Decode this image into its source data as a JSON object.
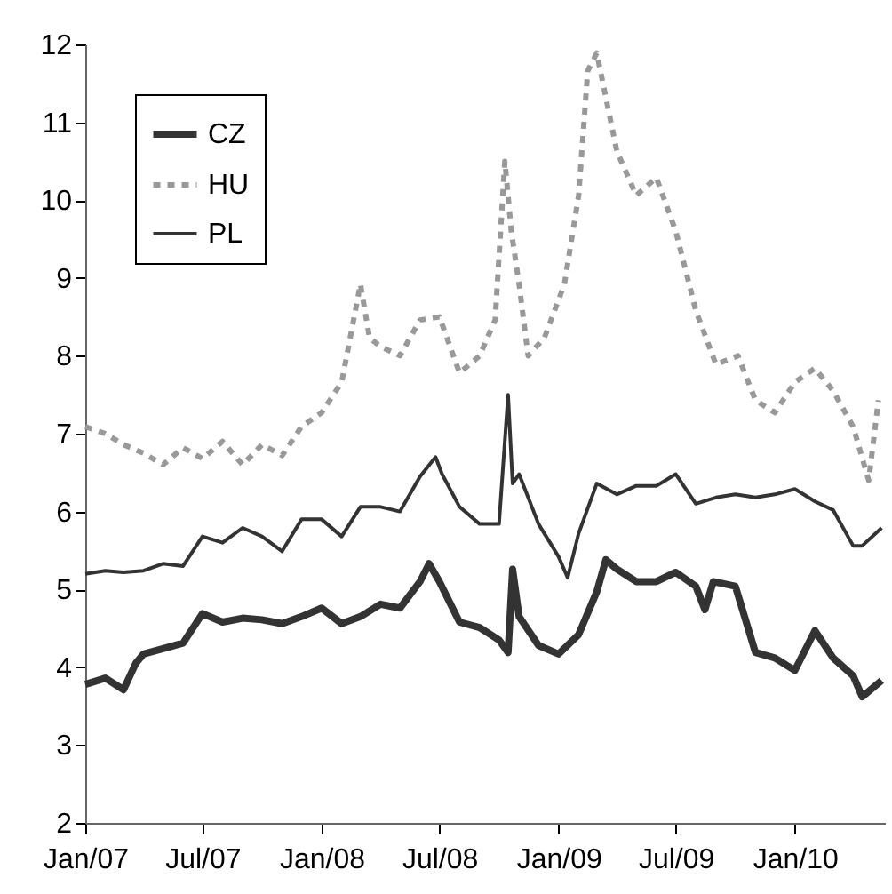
{
  "chart_data": {
    "type": "line",
    "legend": "top left",
    "grid": false,
    "ylim": [
      2,
      12
    ],
    "yticks": [
      2,
      3,
      4,
      5,
      6,
      7,
      8,
      9,
      10,
      11,
      12
    ],
    "xlim": [
      "2007-01-01",
      "2010-05-20"
    ],
    "xticks": [
      {
        "value": "2007-01-01",
        "label": "Jan/07"
      },
      {
        "value": "2007-07-01",
        "label": "Jul/07"
      },
      {
        "value": "2008-01-01",
        "label": "Jan/08"
      },
      {
        "value": "2008-07-01",
        "label": "Jul/08"
      },
      {
        "value": "2009-01-01",
        "label": "Jan/09"
      },
      {
        "value": "2009-07-01",
        "label": "Jul/09"
      },
      {
        "value": "2010-01-01",
        "label": "Jan/10"
      }
    ],
    "series": [
      {
        "name": "CZ",
        "color": "#333333",
        "line_style": "solid",
        "x": [
          "2007-01-01",
          "2007-02-01",
          "2007-03-01",
          "2007-03-20",
          "2007-04-01",
          "2007-05-01",
          "2007-06-01",
          "2007-07-01",
          "2007-08-01",
          "2007-09-01",
          "2007-10-01",
          "2007-11-01",
          "2007-12-01",
          "2008-01-01",
          "2008-02-01",
          "2008-03-01",
          "2008-04-01",
          "2008-05-01",
          "2008-06-01",
          "2008-06-15",
          "2008-07-01",
          "2008-08-01",
          "2008-09-01",
          "2008-10-01",
          "2008-10-15",
          "2008-10-22",
          "2008-11-01",
          "2008-12-01",
          "2009-01-01",
          "2009-02-01",
          "2009-03-01",
          "2009-03-15",
          "2009-04-01",
          "2009-05-01",
          "2009-06-01",
          "2009-07-01",
          "2009-08-01",
          "2009-08-15",
          "2009-08-28",
          "2009-10-01",
          "2009-11-01",
          "2009-12-01",
          "2010-01-01",
          "2010-02-01",
          "2010-03-01",
          "2010-04-01",
          "2010-04-15",
          "2010-05-15"
        ],
        "values": [
          3.78,
          3.86,
          3.71,
          4.05,
          4.17,
          4.24,
          4.31,
          4.69,
          4.58,
          4.63,
          4.61,
          4.56,
          4.65,
          4.76,
          4.56,
          4.65,
          4.81,
          4.76,
          5.1,
          5.33,
          5.1,
          4.58,
          4.51,
          4.35,
          4.19,
          5.26,
          4.65,
          4.28,
          4.17,
          4.42,
          4.97,
          5.38,
          5.26,
          5.1,
          5.1,
          5.22,
          5.04,
          4.74,
          5.1,
          5.04,
          4.19,
          4.12,
          3.96,
          4.47,
          4.12,
          3.89,
          3.62,
          3.83
        ]
      },
      {
        "name": "HU",
        "color": "#999999",
        "line_style": "dashed",
        "x": [
          "2007-01-01",
          "2007-02-01",
          "2007-03-01",
          "2007-04-01",
          "2007-05-01",
          "2007-06-01",
          "2007-07-01",
          "2007-08-01",
          "2007-09-01",
          "2007-10-01",
          "2007-11-01",
          "2007-12-01",
          "2008-01-01",
          "2008-02-01",
          "2008-03-01",
          "2008-03-15",
          "2008-04-01",
          "2008-05-01",
          "2008-06-01",
          "2008-07-01",
          "2008-08-01",
          "2008-09-01",
          "2008-09-25",
          "2008-10-10",
          "2008-10-20",
          "2008-11-01",
          "2008-11-15",
          "2008-12-10",
          "2009-01-10",
          "2009-02-01",
          "2009-02-15",
          "2009-03-01",
          "2009-03-15",
          "2009-04-01",
          "2009-05-01",
          "2009-06-01",
          "2009-07-01",
          "2009-08-01",
          "2009-09-01",
          "2009-10-05",
          "2009-11-01",
          "2009-12-01",
          "2010-01-01",
          "2010-02-01",
          "2010-03-01",
          "2010-04-01",
          "2010-04-25",
          "2010-05-10"
        ],
        "values": [
          7.09,
          7.0,
          6.86,
          6.75,
          6.6,
          6.82,
          6.68,
          6.9,
          6.6,
          6.86,
          6.72,
          7.09,
          7.27,
          7.66,
          8.92,
          8.23,
          8.12,
          8.0,
          8.46,
          8.5,
          7.78,
          8.0,
          8.46,
          10.5,
          9.6,
          8.92,
          8.0,
          8.23,
          8.92,
          10.06,
          11.66,
          11.89,
          11.32,
          10.63,
          10.06,
          10.29,
          9.6,
          8.58,
          7.89,
          8.0,
          7.43,
          7.27,
          7.66,
          7.84,
          7.55,
          7.09,
          6.4,
          7.43
        ]
      },
      {
        "name": "PL",
        "color": "#333333",
        "line_style": "solid",
        "x": [
          "2007-01-01",
          "2007-02-01",
          "2007-03-01",
          "2007-04-01",
          "2007-05-01",
          "2007-06-01",
          "2007-07-01",
          "2007-08-01",
          "2007-09-01",
          "2007-10-01",
          "2007-11-01",
          "2007-12-01",
          "2008-01-01",
          "2008-02-01",
          "2008-03-01",
          "2008-04-01",
          "2008-05-01",
          "2008-06-01",
          "2008-06-25",
          "2008-07-05",
          "2008-08-01",
          "2008-09-01",
          "2008-10-01",
          "2008-10-15",
          "2008-10-22",
          "2008-11-01",
          "2008-12-01",
          "2009-01-01",
          "2009-01-15",
          "2009-02-01",
          "2009-03-01",
          "2009-04-01",
          "2009-05-01",
          "2009-06-01",
          "2009-07-01",
          "2009-08-01",
          "2009-09-01",
          "2009-10-01",
          "2009-11-01",
          "2009-12-01",
          "2010-01-01",
          "2010-02-01",
          "2010-03-01",
          "2010-04-01",
          "2010-04-15",
          "2010-05-15"
        ],
        "values": [
          5.2,
          5.24,
          5.22,
          5.24,
          5.33,
          5.3,
          5.68,
          5.6,
          5.79,
          5.68,
          5.49,
          5.9,
          5.9,
          5.68,
          6.06,
          6.06,
          6.0,
          6.45,
          6.7,
          6.48,
          6.06,
          5.84,
          5.84,
          7.5,
          6.36,
          6.48,
          5.84,
          5.42,
          5.15,
          5.72,
          6.36,
          6.22,
          6.33,
          6.33,
          6.48,
          6.1,
          6.18,
          6.22,
          6.18,
          6.22,
          6.29,
          6.13,
          6.02,
          5.56,
          5.56,
          5.79
        ]
      }
    ]
  }
}
